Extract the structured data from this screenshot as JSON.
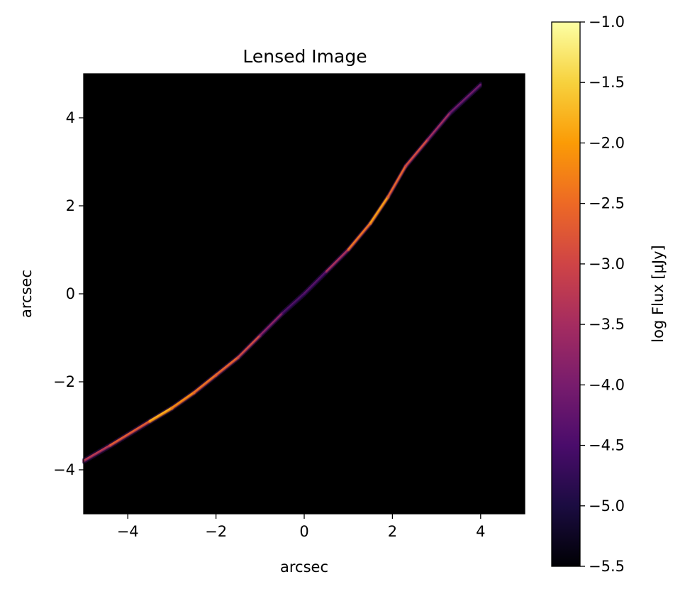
{
  "chart_data": [
    {
      "type": "heatmap",
      "title": "Lensed Image",
      "xlabel": "arcsec",
      "ylabel": "arcsec",
      "xlim": [
        -5,
        5
      ],
      "ylim": [
        -5,
        5
      ],
      "x_ticks": [
        -4,
        -2,
        0,
        2,
        4
      ],
      "y_ticks": [
        -4,
        -2,
        0,
        2,
        4
      ],
      "x_tick_labels": [
        "−4",
        "−2",
        "0",
        "2",
        "4"
      ],
      "y_tick_labels": [
        "−4",
        "−2",
        "0",
        "2",
        "4"
      ],
      "grid": false,
      "background_color": "#000000",
      "colormap": "inferno",
      "colormap_stops": [
        "#000004",
        "#1b0c41",
        "#4a0c6b",
        "#781c6d",
        "#a52c60",
        "#cf4446",
        "#ed6925",
        "#fb9b06",
        "#f7d13d",
        "#fcffa4"
      ],
      "arc": {
        "description_points": [
          {
            "x": -5.0,
            "y": -3.8,
            "log_flux": -3.0
          },
          {
            "x": -4.4,
            "y": -3.45,
            "log_flux": -3.8
          },
          {
            "x": -3.5,
            "y": -2.9,
            "log_flux": -2.0
          },
          {
            "x": -3.0,
            "y": -2.6,
            "log_flux": -2.2
          },
          {
            "x": -2.5,
            "y": -2.25,
            "log_flux": -2.6
          },
          {
            "x": -2.0,
            "y": -1.85,
            "log_flux": -2.7
          },
          {
            "x": -1.5,
            "y": -1.45,
            "log_flux": -2.9
          },
          {
            "x": -1.0,
            "y": -0.95,
            "log_flux": -3.4
          },
          {
            "x": -0.5,
            "y": -0.45,
            "log_flux": -4.4
          },
          {
            "x": 0.0,
            "y": 0.0,
            "log_flux": -4.7
          },
          {
            "x": 0.5,
            "y": 0.5,
            "log_flux": -4.2
          },
          {
            "x": 1.0,
            "y": 1.0,
            "log_flux": -3.0
          },
          {
            "x": 1.5,
            "y": 1.6,
            "log_flux": -2.3
          },
          {
            "x": 1.9,
            "y": 2.2,
            "log_flux": -2.2
          },
          {
            "x": 2.3,
            "y": 2.9,
            "log_flux": -3.4
          },
          {
            "x": 2.8,
            "y": 3.5,
            "log_flux": -2.8
          },
          {
            "x": 3.3,
            "y": 4.1,
            "log_flux": -4.6
          },
          {
            "x": 4.0,
            "y": 4.75,
            "log_flux": -3.8
          }
        ]
      }
    },
    {
      "type": "colorbar",
      "label": "log Flux [μJy]",
      "vmin": -5.5,
      "vmax": -1.0,
      "ticks": [
        -1.0,
        -1.5,
        -2.0,
        -2.5,
        -3.0,
        -3.5,
        -4.0,
        -4.5,
        -5.0,
        -5.5
      ],
      "tick_labels": [
        "−1.0",
        "−1.5",
        "−2.0",
        "−2.5",
        "−3.0",
        "−3.5",
        "−4.0",
        "−4.5",
        "−5.0",
        "−5.5"
      ]
    }
  ]
}
